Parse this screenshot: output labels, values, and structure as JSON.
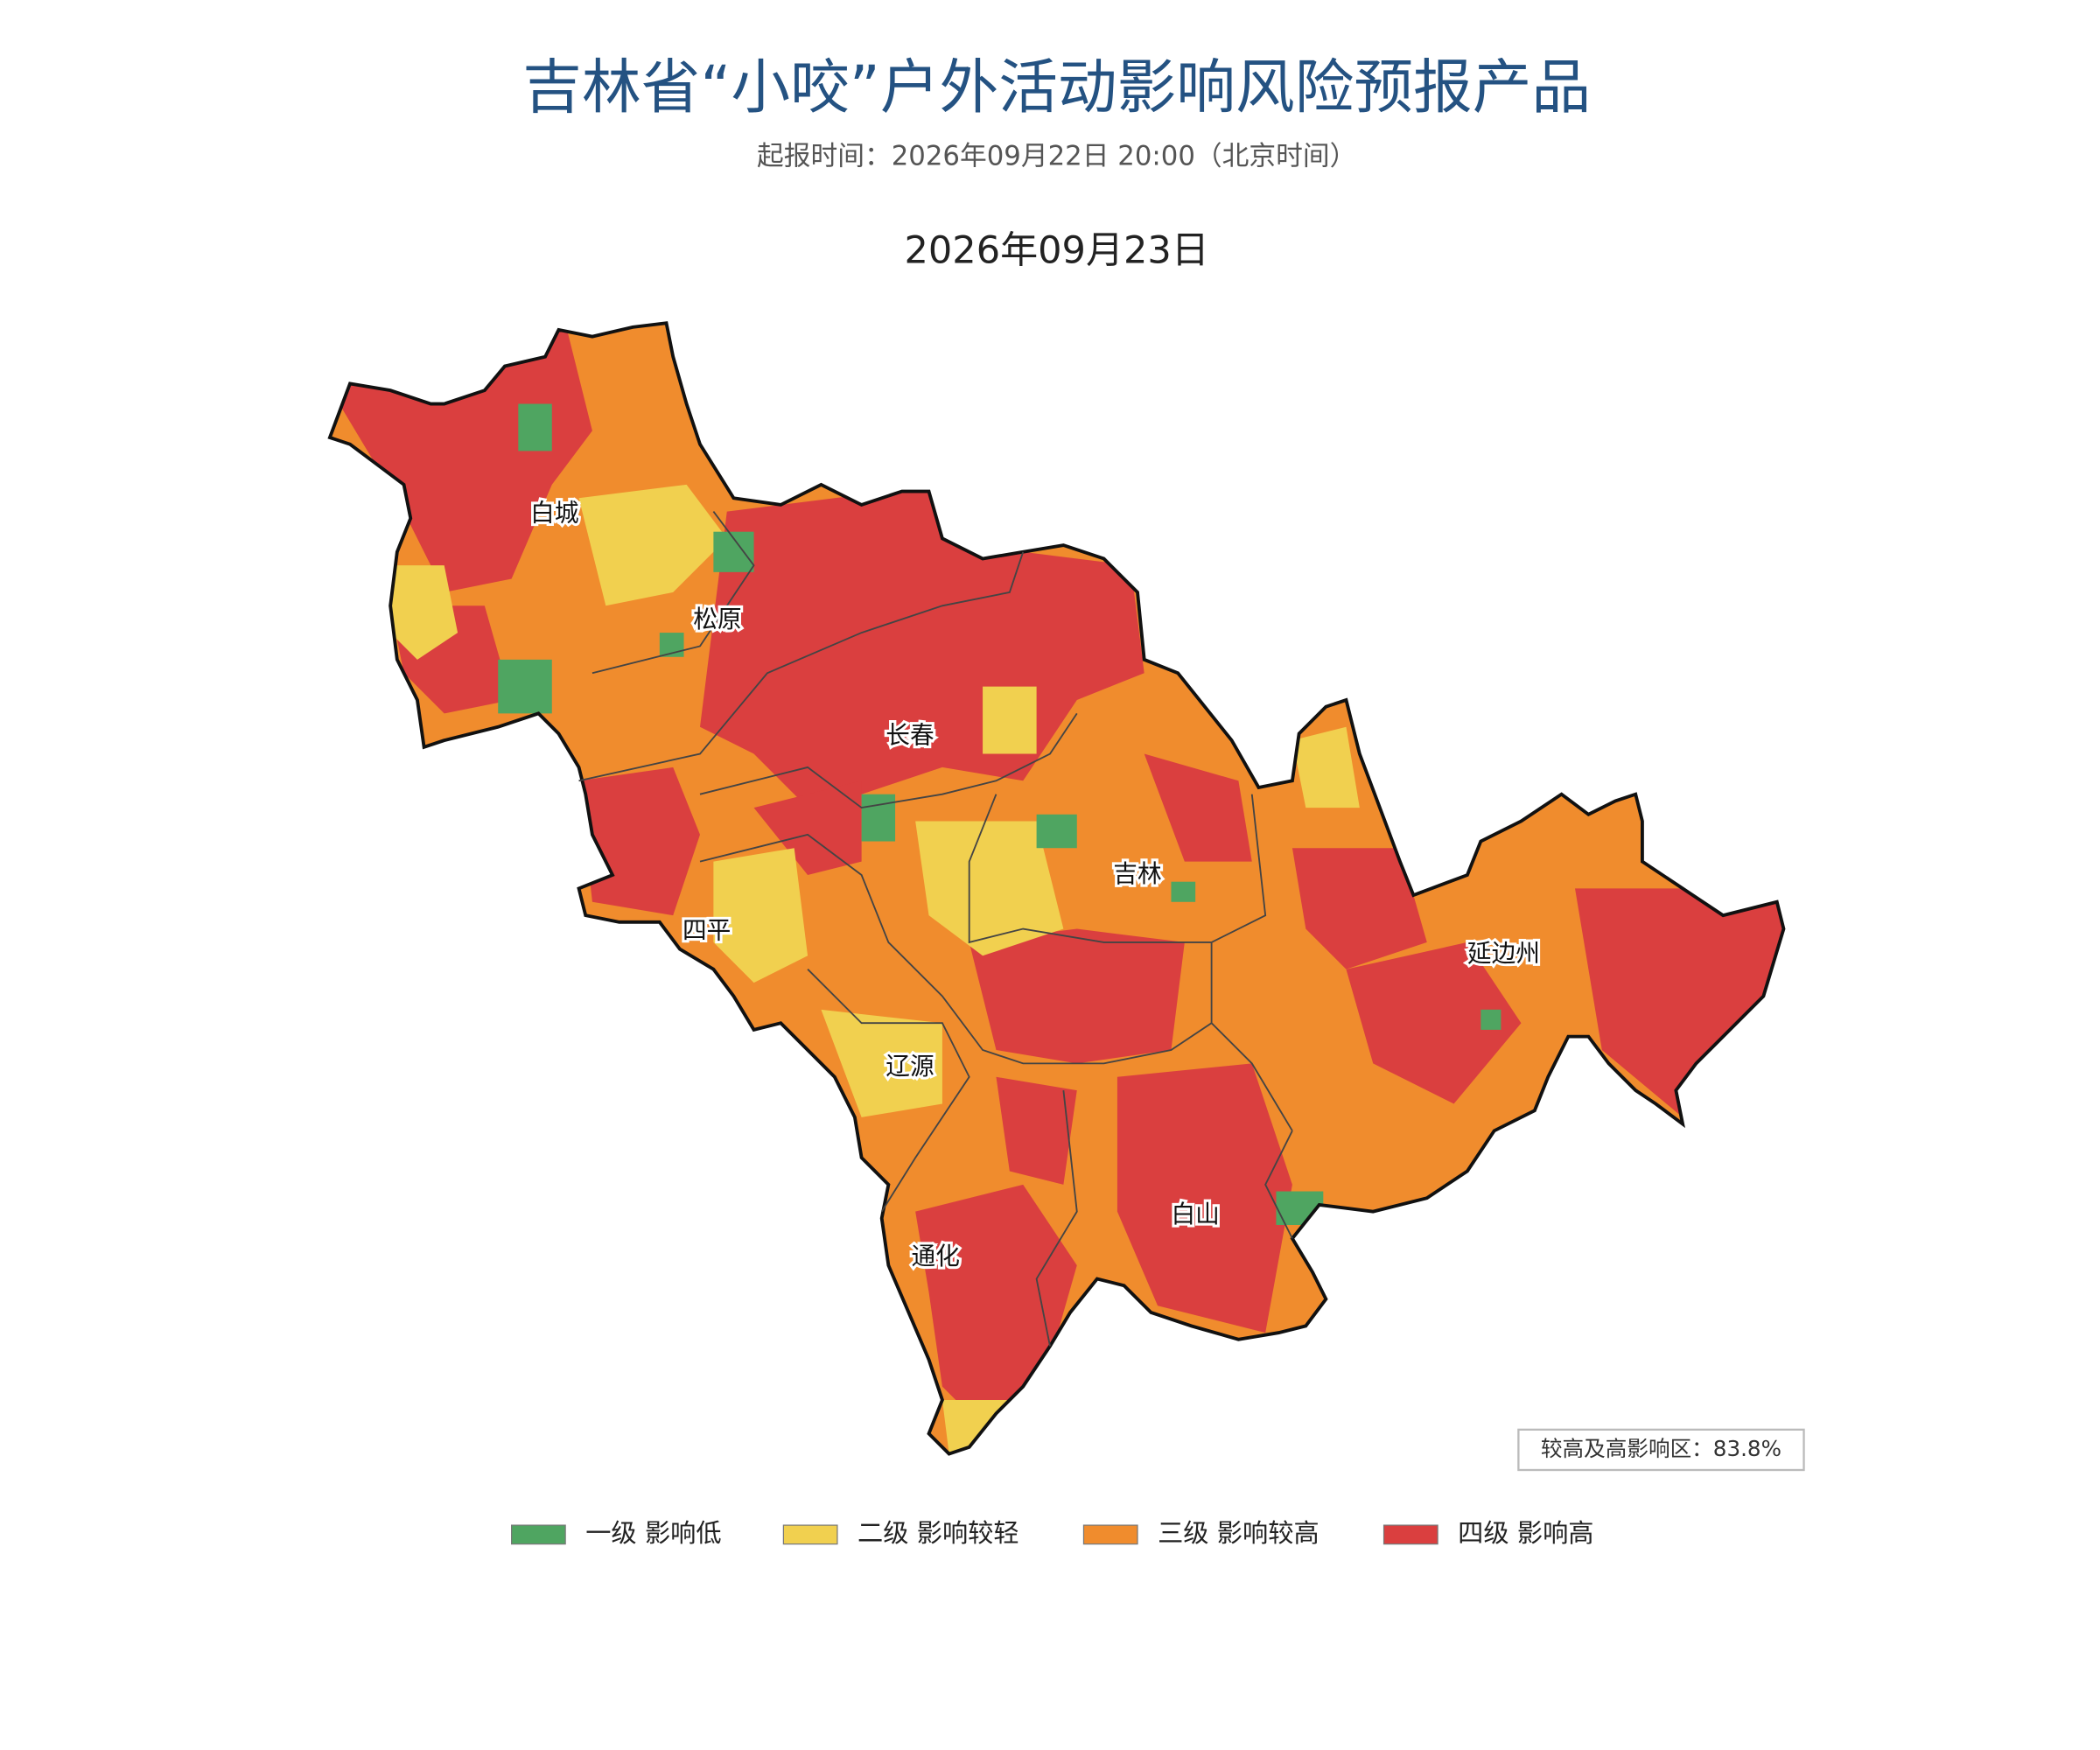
{
  "header": {
    "title": "吉林省“小咬”户外活动影响风险预报产品",
    "subtitle": "起报时间：2026年09月22日 20:00（北京时间）",
    "date": "2026年09月23日"
  },
  "map": {
    "cities": [
      "白城",
      "松原",
      "长春",
      "吉林",
      "四平",
      "辽源",
      "延边州",
      "通化",
      "白山"
    ],
    "stat": "较高及高影响区：83.8%"
  },
  "legend": [
    {
      "label": "一级 影响低",
      "color": "#4fa561"
    },
    {
      "label": "二级 影响较轻",
      "color": "#f1d04f"
    },
    {
      "label": "三级 影响较高",
      "color": "#f08c2d"
    },
    {
      "label": "四级 影响高",
      "color": "#da3f3f"
    }
  ]
}
